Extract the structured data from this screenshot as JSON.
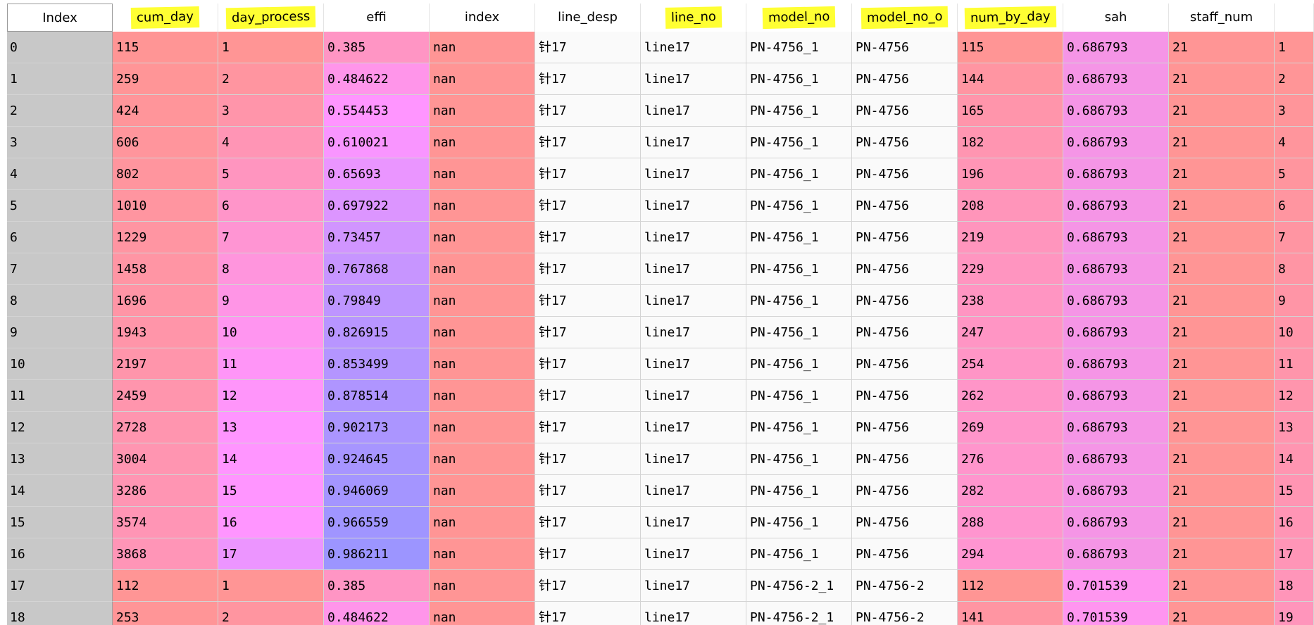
{
  "columns": [
    "Index",
    "cum_day",
    "day_process",
    "effi",
    "index",
    "line_desp",
    "line_no",
    "model_no",
    "model_no_o",
    "num_by_day",
    "sah",
    "staff_num",
    ""
  ],
  "highlighted_columns": [
    "cum_day",
    "day_process",
    "line_no",
    "model_no",
    "model_no_o",
    "num_by_day"
  ],
  "highlight_color": "#ffff33",
  "rows": [
    {
      "Index": "0",
      "cum_day": "115",
      "day_process": "1",
      "effi": "0.385",
      "index": "nan",
      "line_desp": "针17",
      "line_no": "line17",
      "model_no": "PN-4756_1",
      "model_no_o": "PN-4756",
      "num_by_day": "115",
      "sah": "0.686793",
      "staff_num": "21",
      "extra": "1"
    },
    {
      "Index": "1",
      "cum_day": "259",
      "day_process": "2",
      "effi": "0.484622",
      "index": "nan",
      "line_desp": "针17",
      "line_no": "line17",
      "model_no": "PN-4756_1",
      "model_no_o": "PN-4756",
      "num_by_day": "144",
      "sah": "0.686793",
      "staff_num": "21",
      "extra": "2"
    },
    {
      "Index": "2",
      "cum_day": "424",
      "day_process": "3",
      "effi": "0.554453",
      "index": "nan",
      "line_desp": "针17",
      "line_no": "line17",
      "model_no": "PN-4756_1",
      "model_no_o": "PN-4756",
      "num_by_day": "165",
      "sah": "0.686793",
      "staff_num": "21",
      "extra": "3"
    },
    {
      "Index": "3",
      "cum_day": "606",
      "day_process": "4",
      "effi": "0.610021",
      "index": "nan",
      "line_desp": "针17",
      "line_no": "line17",
      "model_no": "PN-4756_1",
      "model_no_o": "PN-4756",
      "num_by_day": "182",
      "sah": "0.686793",
      "staff_num": "21",
      "extra": "4"
    },
    {
      "Index": "4",
      "cum_day": "802",
      "day_process": "5",
      "effi": "0.65693",
      "index": "nan",
      "line_desp": "针17",
      "line_no": "line17",
      "model_no": "PN-4756_1",
      "model_no_o": "PN-4756",
      "num_by_day": "196",
      "sah": "0.686793",
      "staff_num": "21",
      "extra": "5"
    },
    {
      "Index": "5",
      "cum_day": "1010",
      "day_process": "6",
      "effi": "0.697922",
      "index": "nan",
      "line_desp": "针17",
      "line_no": "line17",
      "model_no": "PN-4756_1",
      "model_no_o": "PN-4756",
      "num_by_day": "208",
      "sah": "0.686793",
      "staff_num": "21",
      "extra": "6"
    },
    {
      "Index": "6",
      "cum_day": "1229",
      "day_process": "7",
      "effi": "0.73457",
      "index": "nan",
      "line_desp": "针17",
      "line_no": "line17",
      "model_no": "PN-4756_1",
      "model_no_o": "PN-4756",
      "num_by_day": "219",
      "sah": "0.686793",
      "staff_num": "21",
      "extra": "7"
    },
    {
      "Index": "7",
      "cum_day": "1458",
      "day_process": "8",
      "effi": "0.767868",
      "index": "nan",
      "line_desp": "针17",
      "line_no": "line17",
      "model_no": "PN-4756_1",
      "model_no_o": "PN-4756",
      "num_by_day": "229",
      "sah": "0.686793",
      "staff_num": "21",
      "extra": "8"
    },
    {
      "Index": "8",
      "cum_day": "1696",
      "day_process": "9",
      "effi": "0.79849",
      "index": "nan",
      "line_desp": "针17",
      "line_no": "line17",
      "model_no": "PN-4756_1",
      "model_no_o": "PN-4756",
      "num_by_day": "238",
      "sah": "0.686793",
      "staff_num": "21",
      "extra": "9"
    },
    {
      "Index": "9",
      "cum_day": "1943",
      "day_process": "10",
      "effi": "0.826915",
      "index": "nan",
      "line_desp": "针17",
      "line_no": "line17",
      "model_no": "PN-4756_1",
      "model_no_o": "PN-4756",
      "num_by_day": "247",
      "sah": "0.686793",
      "staff_num": "21",
      "extra": "10"
    },
    {
      "Index": "10",
      "cum_day": "2197",
      "day_process": "11",
      "effi": "0.853499",
      "index": "nan",
      "line_desp": "针17",
      "line_no": "line17",
      "model_no": "PN-4756_1",
      "model_no_o": "PN-4756",
      "num_by_day": "254",
      "sah": "0.686793",
      "staff_num": "21",
      "extra": "11"
    },
    {
      "Index": "11",
      "cum_day": "2459",
      "day_process": "12",
      "effi": "0.878514",
      "index": "nan",
      "line_desp": "针17",
      "line_no": "line17",
      "model_no": "PN-4756_1",
      "model_no_o": "PN-4756",
      "num_by_day": "262",
      "sah": "0.686793",
      "staff_num": "21",
      "extra": "12"
    },
    {
      "Index": "12",
      "cum_day": "2728",
      "day_process": "13",
      "effi": "0.902173",
      "index": "nan",
      "line_desp": "针17",
      "line_no": "line17",
      "model_no": "PN-4756_1",
      "model_no_o": "PN-4756",
      "num_by_day": "269",
      "sah": "0.686793",
      "staff_num": "21",
      "extra": "13"
    },
    {
      "Index": "13",
      "cum_day": "3004",
      "day_process": "14",
      "effi": "0.924645",
      "index": "nan",
      "line_desp": "针17",
      "line_no": "line17",
      "model_no": "PN-4756_1",
      "model_no_o": "PN-4756",
      "num_by_day": "276",
      "sah": "0.686793",
      "staff_num": "21",
      "extra": "14"
    },
    {
      "Index": "14",
      "cum_day": "3286",
      "day_process": "15",
      "effi": "0.946069",
      "index": "nan",
      "line_desp": "针17",
      "line_no": "line17",
      "model_no": "PN-4756_1",
      "model_no_o": "PN-4756",
      "num_by_day": "282",
      "sah": "0.686793",
      "staff_num": "21",
      "extra": "15"
    },
    {
      "Index": "15",
      "cum_day": "3574",
      "day_process": "16",
      "effi": "0.966559",
      "index": "nan",
      "line_desp": "针17",
      "line_no": "line17",
      "model_no": "PN-4756_1",
      "model_no_o": "PN-4756",
      "num_by_day": "288",
      "sah": "0.686793",
      "staff_num": "21",
      "extra": "16"
    },
    {
      "Index": "16",
      "cum_day": "3868",
      "day_process": "17",
      "effi": "0.986211",
      "index": "nan",
      "line_desp": "针17",
      "line_no": "line17",
      "model_no": "PN-4756_1",
      "model_no_o": "PN-4756",
      "num_by_day": "294",
      "sah": "0.686793",
      "staff_num": "21",
      "extra": "17"
    },
    {
      "Index": "17",
      "cum_day": "112",
      "day_process": "1",
      "effi": "0.385",
      "index": "nan",
      "line_desp": "针17",
      "line_no": "line17",
      "model_no": "PN-4756-2_1",
      "model_no_o": "PN-4756-2",
      "num_by_day": "112",
      "sah": "0.701539",
      "staff_num": "21",
      "extra": "18"
    },
    {
      "Index": "18",
      "cum_day": "253",
      "day_process": "2",
      "effi": "0.484622",
      "index": "nan",
      "line_desp": "针17",
      "line_no": "line17",
      "model_no": "PN-4756-2_1",
      "model_no_o": "PN-4756-2",
      "num_by_day": "141",
      "sah": "0.701539",
      "staff_num": "21",
      "extra": "19"
    }
  ],
  "cell_colors": {
    "cum_day": [
      "#ff9595",
      "#ff9597",
      "#ff959a",
      "#ff959c",
      "#ff959e",
      "#ff95a0",
      "#ff95a2",
      "#ff95a4",
      "#ff95a6",
      "#ff95a9",
      "#ff95ab",
      "#ff95ad",
      "#ff95af",
      "#ff95b1",
      "#ff95b3",
      "#ff95b5",
      "#ff95b7",
      "#ff9595",
      "#ff9597"
    ],
    "day_process": [
      "#ff9595",
      "#ff95a0",
      "#ff95aa",
      "#ff95b5",
      "#ff95bf",
      "#ff95c9",
      "#ff95d3",
      "#ff95dd",
      "#ff95e6",
      "#ff95f0",
      "#ff95f7",
      "#ff95fa",
      "#ff95ff",
      "#ff95ff",
      "#ff95ff",
      "#ff95ff",
      "#ec95ff",
      "#ff9595",
      "#ff95a0"
    ],
    "effi": [
      "#ff95c4",
      "#ff95ea",
      "#ff95ff",
      "#f995ff",
      "#ea95ff",
      "#dc95ff",
      "#d195ff",
      "#c795ff",
      "#be95ff",
      "#b895ff",
      "#b495ff",
      "#af95ff",
      "#ab95ff",
      "#a795ff",
      "#a495ff",
      "#a095ff",
      "#9c95ff",
      "#ff95c4",
      "#ff95ea"
    ],
    "index": [
      "#ff9595"
    ],
    "line_desp": [
      "#fafafa"
    ],
    "line_no": [
      "#fafafa"
    ],
    "model_no": [
      "#fafafa"
    ],
    "model_no_o": [
      "#fafafa"
    ],
    "num_by_day": [
      "#ff9595",
      "#ff95a2",
      "#ff95ab",
      "#ff95b1",
      "#ff95b6",
      "#ff95ba",
      "#ff95bd",
      "#ff95c0",
      "#ff95c2",
      "#ff95c4",
      "#ff95c6",
      "#ff95c8",
      "#ff95ca",
      "#ff95cc",
      "#ff95ce",
      "#ff95cf",
      "#ff95d1",
      "#ff9594",
      "#ff95a2"
    ],
    "sah": [
      "#f595e6",
      "#f595e6",
      "#f595e6",
      "#f595e6",
      "#f595e6",
      "#f595e6",
      "#f595e6",
      "#f595e6",
      "#f595e6",
      "#f595e6",
      "#f595e6",
      "#f595e6",
      "#f595e6",
      "#f595e6",
      "#f595e6",
      "#f595e6",
      "#f595e6",
      "#ff95f0",
      "#ff95f0"
    ],
    "staff_num": [
      "#ff9595"
    ],
    "extra": [
      "#ff9595",
      "#ff9597",
      "#ff959a",
      "#ff959c",
      "#ff959e",
      "#ff95a0",
      "#ff95a2",
      "#ff95a4",
      "#ff95a6",
      "#ff95a9",
      "#ff95ab",
      "#ff95ad",
      "#ff95af",
      "#ff95b1",
      "#ff95b3",
      "#ff95b5",
      "#ff95b7",
      "#ff95b9",
      "#ff95bb"
    ]
  }
}
